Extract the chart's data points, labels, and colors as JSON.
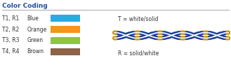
{
  "title": "Color Coding",
  "rows": [
    {
      "label": "T1, R1",
      "color_name": "Blue",
      "color": "#29ABE2"
    },
    {
      "label": "T2, R2",
      "color_name": "Orange",
      "color": "#F7941D"
    },
    {
      "label": "T3, R3",
      "color_name": "Green",
      "color": "#8DC63F"
    },
    {
      "label": "T4, R4",
      "color_name": "Brown",
      "color": "#8B6347"
    }
  ],
  "cable_orange": "#C8920A",
  "cable_blue": "#1A3FA0",
  "cable_white": "#FFFFFF",
  "text_T": "T = white/solid",
  "text_R": "R = solid/white",
  "bg_color": "#FFFFFF",
  "title_color": "#1F4FA0",
  "label_color": "#333333"
}
